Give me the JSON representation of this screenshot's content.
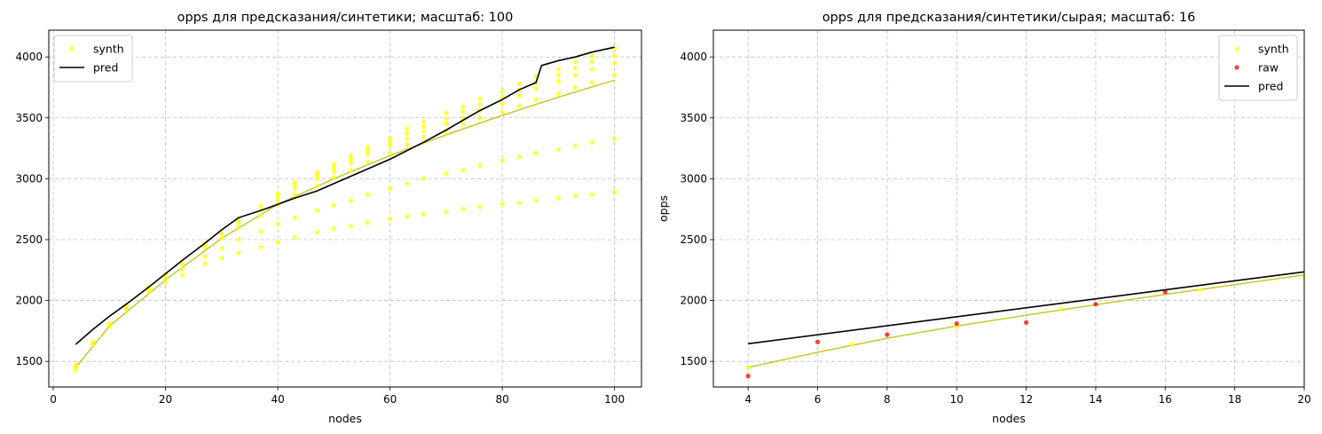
{
  "chart_data": [
    {
      "type": "scatter",
      "title": "opps для предсказания/синтетики; масштаб: 100",
      "xlabel": "nodes",
      "ylabel": "",
      "xlim": [
        -0.8,
        104.8
      ],
      "ylim": [
        1290,
        4220
      ],
      "xticks": [
        0,
        20,
        40,
        60,
        80,
        100
      ],
      "yticks": [
        1500,
        2000,
        2500,
        3000,
        3500,
        4000
      ],
      "grid": true,
      "legend_position": "top-left",
      "colors": {
        "synth": "#ffff00",
        "pred": "#000000",
        "fit": "#c8c828"
      },
      "series": [
        {
          "name": "synth",
          "kind": "scatter",
          "x": [
            4,
            4,
            4,
            7,
            7,
            10,
            10,
            13,
            13,
            17,
            17,
            17,
            20,
            20,
            20,
            23,
            23,
            23,
            27,
            27,
            27,
            27,
            30,
            30,
            30,
            30,
            33,
            33,
            33,
            33,
            33,
            37,
            37,
            37,
            37,
            37,
            40,
            40,
            40,
            40,
            40,
            40,
            43,
            43,
            43,
            43,
            43,
            43,
            47,
            47,
            47,
            47,
            47,
            47,
            50,
            50,
            50,
            50,
            50,
            50,
            53,
            53,
            53,
            53,
            53,
            53,
            56,
            56,
            56,
            56,
            56,
            56,
            60,
            60,
            60,
            60,
            60,
            60,
            63,
            63,
            63,
            63,
            63,
            63,
            66,
            66,
            66,
            66,
            66,
            66,
            70,
            70,
            70,
            70,
            70,
            70,
            73,
            73,
            73,
            73,
            73,
            73,
            76,
            76,
            76,
            76,
            76,
            76,
            80,
            80,
            80,
            80,
            80,
            80,
            83,
            83,
            83,
            83,
            83,
            83,
            86,
            86,
            86,
            86,
            86,
            86,
            90,
            90,
            90,
            90,
            90,
            90,
            93,
            93,
            93,
            93,
            93,
            93,
            96,
            96,
            96,
            96,
            96,
            96,
            100,
            100,
            100,
            100,
            100,
            100
          ],
          "y": [
            1430,
            1450,
            1470,
            1640,
            1660,
            1790,
            1810,
            1930,
            1950,
            2070,
            2090,
            2110,
            2150,
            2190,
            2220,
            2210,
            2260,
            2300,
            2300,
            2360,
            2440,
            2470,
            2350,
            2430,
            2510,
            2550,
            2390,
            2500,
            2600,
            2640,
            2670,
            2440,
            2570,
            2700,
            2750,
            2780,
            2480,
            2630,
            2790,
            2830,
            2860,
            2880,
            2520,
            2680,
            2870,
            2920,
            2950,
            2970,
            2560,
            2740,
            2940,
            3000,
            3030,
            3050,
            2590,
            2780,
            3010,
            3060,
            3090,
            3120,
            2610,
            2820,
            3070,
            3130,
            3160,
            3190,
            2640,
            2870,
            3140,
            3200,
            3230,
            3260,
            2670,
            2920,
            3210,
            3270,
            3300,
            3330,
            2690,
            2960,
            3280,
            3330,
            3370,
            3410,
            2710,
            3000,
            3340,
            3390,
            3430,
            3470,
            2730,
            3040,
            3390,
            3450,
            3490,
            3540,
            2750,
            3070,
            3450,
            3500,
            3550,
            3590,
            2770,
            3110,
            3500,
            3560,
            3610,
            3660,
            2790,
            3150,
            3550,
            3620,
            3670,
            3720,
            2800,
            3180,
            3600,
            3680,
            3730,
            3780,
            2820,
            3210,
            3650,
            3740,
            3790,
            3840,
            2840,
            3240,
            3700,
            3800,
            3850,
            3900,
            2860,
            3270,
            3750,
            3850,
            3910,
            3960,
            2870,
            3300,
            3790,
            3900,
            3960,
            4010,
            2890,
            3330,
            3850,
            3950,
            4010,
            4070
          ]
        },
        {
          "name": "pred",
          "kind": "line",
          "x": [
            4,
            7,
            10,
            13,
            17,
            20,
            23,
            27,
            30,
            33,
            37,
            40,
            43,
            47,
            50,
            53,
            56,
            60,
            63,
            66,
            70,
            73,
            76,
            80,
            83,
            86,
            87,
            90,
            93,
            96,
            100
          ],
          "y": [
            1640,
            1760,
            1870,
            1970,
            2110,
            2220,
            2330,
            2470,
            2580,
            2680,
            2740,
            2790,
            2840,
            2900,
            2960,
            3020,
            3080,
            3160,
            3230,
            3300,
            3400,
            3480,
            3560,
            3650,
            3730,
            3790,
            3930,
            3970,
            4000,
            4040,
            4080
          ]
        },
        {
          "name": "",
          "kind": "line",
          "x": [
            4,
            10,
            20,
            30,
            40,
            50,
            60,
            70,
            80,
            90,
            100
          ],
          "y": [
            1450,
            1790,
            2170,
            2510,
            2790,
            3000,
            3190,
            3360,
            3520,
            3670,
            3810
          ]
        }
      ]
    },
    {
      "type": "scatter",
      "title": "opps для предсказания/синтетики/сырая; масштаб: 16",
      "xlabel": "nodes",
      "ylabel": "opps",
      "xlim": [
        3,
        20
      ],
      "ylim": [
        1290,
        4220
      ],
      "xticks": [
        4,
        6,
        8,
        10,
        12,
        14,
        16,
        18,
        20
      ],
      "yticks": [
        1500,
        2000,
        2500,
        3000,
        3500,
        4000
      ],
      "grid": true,
      "legend_position": "top-right",
      "colors": {
        "synth": "#ffff00",
        "raw": "#ff0000",
        "pred": "#000000",
        "fit": "#c8c828"
      },
      "series": [
        {
          "name": "synth",
          "kind": "scatter",
          "x": [
            4,
            7,
            10,
            13,
            17,
            20
          ],
          "y": [
            1450,
            1640,
            1790,
            1930,
            2090,
            2190
          ]
        },
        {
          "name": "raw",
          "kind": "scatter",
          "x": [
            4,
            6,
            8,
            10,
            12,
            14,
            16
          ],
          "y": [
            1380,
            1660,
            1720,
            1810,
            1820,
            1970,
            2070
          ]
        },
        {
          "name": "pred",
          "kind": "line",
          "x": [
            4,
            20
          ],
          "y": [
            1645,
            2235
          ]
        },
        {
          "name": "",
          "kind": "line",
          "x": [
            4,
            6,
            8,
            10,
            12,
            14,
            16,
            18,
            20
          ],
          "y": [
            1450,
            1575,
            1690,
            1790,
            1880,
            1965,
            2050,
            2130,
            2210
          ]
        }
      ]
    }
  ]
}
